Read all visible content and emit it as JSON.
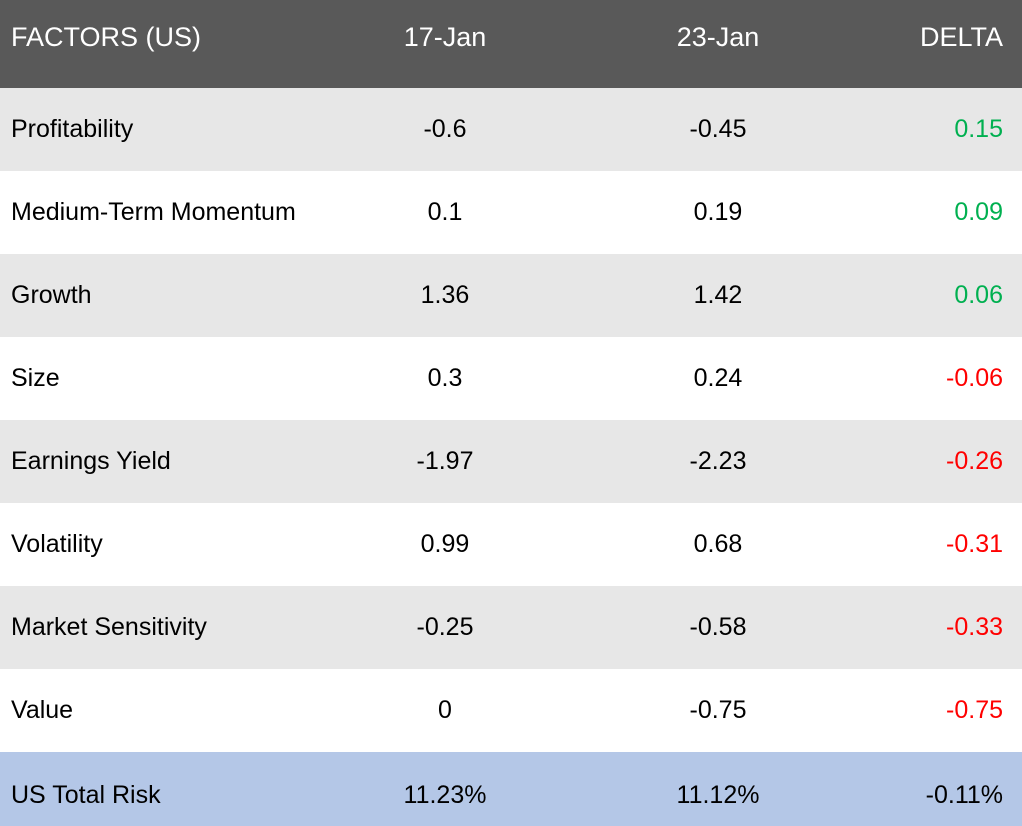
{
  "table": {
    "header": [
      "FACTORS (US)",
      "17-Jan",
      "23-Jan",
      "DELTA"
    ],
    "rows": [
      {
        "label": "Profitability",
        "v1": "-0.6",
        "v2": "-0.45",
        "delta": "0.15",
        "trend": "positive"
      },
      {
        "label": "Medium-Term Momentum",
        "v1": "0.1",
        "v2": "0.19",
        "delta": "0.09",
        "trend": "positive"
      },
      {
        "label": "Growth",
        "v1": "1.36",
        "v2": "1.42",
        "delta": "0.06",
        "trend": "positive"
      },
      {
        "label": "Size",
        "v1": "0.3",
        "v2": "0.24",
        "delta": "-0.06",
        "trend": "negative"
      },
      {
        "label": "Earnings Yield",
        "v1": "-1.97",
        "v2": "-2.23",
        "delta": "-0.26",
        "trend": "negative"
      },
      {
        "label": "Volatility",
        "v1": "0.99",
        "v2": "0.68",
        "delta": "-0.31",
        "trend": "negative"
      },
      {
        "label": "Market Sensitivity",
        "v1": "-0.25",
        "v2": "-0.58",
        "delta": "-0.33",
        "trend": "negative"
      },
      {
        "label": "Value",
        "v1": "0",
        "v2": "-0.75",
        "delta": "-0.75",
        "trend": "negative"
      }
    ],
    "footer": {
      "label": "US Total Risk",
      "v1": "11.23%",
      "v2": "11.12%",
      "delta": "-0.11%",
      "trend": "neutral"
    }
  },
  "colors": {
    "header_bg": "#595959",
    "header_text": "#ffffff",
    "row_stripe_bg": "#e7e7e7",
    "row_plain_bg": "#ffffff",
    "footer_bg": "#b4c7e7",
    "positive_delta": "#00b050",
    "negative_delta": "#ff0000",
    "body_text": "#000000"
  },
  "chart_data": {
    "type": "table",
    "title": "FACTORS (US)",
    "columns": [
      "FACTORS (US)",
      "17-Jan",
      "23-Jan",
      "DELTA"
    ],
    "rows": [
      [
        "Profitability",
        -0.6,
        -0.45,
        0.15
      ],
      [
        "Medium-Term Momentum",
        0.1,
        0.19,
        0.09
      ],
      [
        "Growth",
        1.36,
        1.42,
        0.06
      ],
      [
        "Size",
        0.3,
        0.24,
        -0.06
      ],
      [
        "Earnings Yield",
        -1.97,
        -2.23,
        -0.26
      ],
      [
        "Volatility",
        0.99,
        0.68,
        -0.31
      ],
      [
        "Market Sensitivity",
        -0.25,
        -0.58,
        -0.33
      ],
      [
        "Value",
        0,
        -0.75,
        -0.75
      ]
    ],
    "footer_row": [
      "US Total Risk",
      "11.23%",
      "11.12%",
      "-0.11%"
    ],
    "notes": "Positive DELTA values rendered green, negative DELTA values red, footer DELTA black"
  }
}
